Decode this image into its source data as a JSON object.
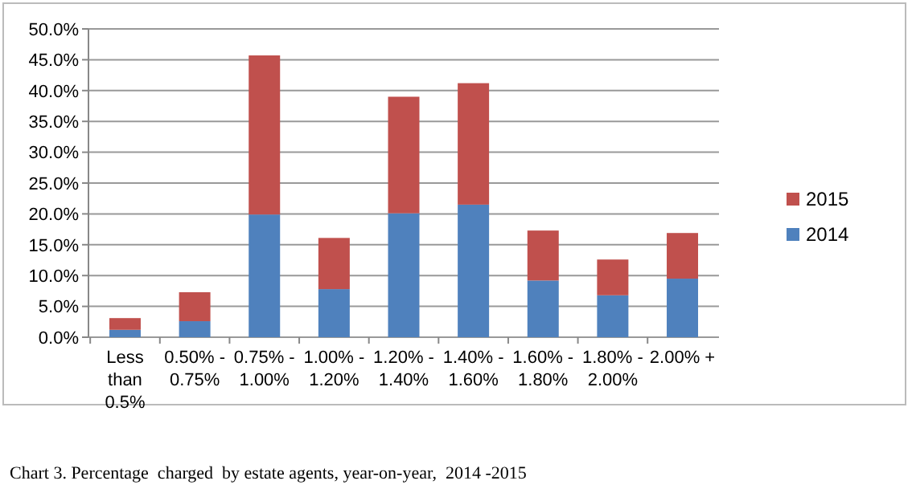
{
  "chart_data": {
    "type": "bar",
    "stacked": true,
    "categories": [
      "Less than 0.5%",
      "0.50% - 0.75%",
      "0.75% - 1.00%",
      "1.00% - 1.20%",
      "1.20% - 1.40%",
      "1.40% - 1.60%",
      "1.60% - 1.80%",
      "1.80% - 2.00%",
      "2.00% +"
    ],
    "series": [
      {
        "name": "2014",
        "color": "#4f81bd",
        "values": [
          1.2,
          2.6,
          19.9,
          7.8,
          20.1,
          21.5,
          9.2,
          6.8,
          9.5
        ]
      },
      {
        "name": "2015",
        "color": "#c0504d",
        "values": [
          1.9,
          4.7,
          25.8,
          8.3,
          18.9,
          19.7,
          8.1,
          5.8,
          7.4
        ]
      }
    ],
    "ylim": [
      0,
      50
    ],
    "yticks": [
      {
        "value": 0,
        "label": "0.0%"
      },
      {
        "value": 5,
        "label": "5.0%"
      },
      {
        "value": 10,
        "label": "10.0%"
      },
      {
        "value": 15,
        "label": "15.0%"
      },
      {
        "value": 20,
        "label": "20.0%"
      },
      {
        "value": 25,
        "label": "25.0%"
      },
      {
        "value": 30,
        "label": "30.0%"
      },
      {
        "value": 35,
        "label": "35.0%"
      },
      {
        "value": 40,
        "label": "40.0%"
      },
      {
        "value": 45,
        "label": "45.0%"
      },
      {
        "value": 50,
        "label": "50.0%"
      }
    ],
    "grid": "y",
    "legend": "right",
    "annotations": [
      "Chart 3. Percentage  charged  by estate agents, year-on-year,  2014 -2015"
    ]
  }
}
